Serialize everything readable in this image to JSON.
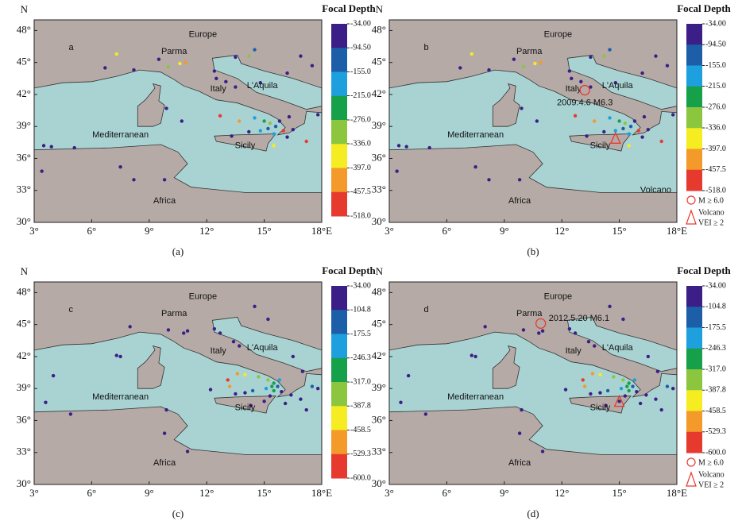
{
  "panels": [
    {
      "letter": "a",
      "caption": "(a)",
      "y_axis_label": "N",
      "colorbar_title": "Focal Depth",
      "xlim": [
        3,
        18
      ],
      "ylim": [
        30,
        49
      ],
      "xticks": [
        {
          "value": 3,
          "label": "3°"
        },
        {
          "value": 6,
          "label": "6°"
        },
        {
          "value": 9,
          "label": "9°"
        },
        {
          "value": 12,
          "label": "12°"
        },
        {
          "value": 15,
          "label": "15°"
        },
        {
          "value": 18,
          "label": "18°E"
        }
      ],
      "yticks": [
        {
          "value": 30,
          "label": "30°"
        },
        {
          "value": 33,
          "label": "33°"
        },
        {
          "value": 36,
          "label": "36°"
        },
        {
          "value": 39,
          "label": "39°"
        },
        {
          "value": 42,
          "label": "42°"
        },
        {
          "value": 45,
          "label": "45°"
        },
        {
          "value": 48,
          "label": "48°"
        }
      ],
      "colorbar_ticks": [
        {
          "value": -34,
          "label": "-34.00"
        },
        {
          "value": -94.5,
          "label": "-94.50"
        },
        {
          "value": -155,
          "label": "-155.0"
        },
        {
          "value": -215,
          "label": "-215.0"
        },
        {
          "value": -276,
          "label": "-276.0"
        },
        {
          "value": -336,
          "label": "-336.0"
        },
        {
          "value": -397,
          "label": "-397.0"
        },
        {
          "value": -457.5,
          "label": "-457.5"
        },
        {
          "value": -518,
          "label": "-518.0"
        }
      ],
      "colors": [
        "#3b1f86",
        "#1c5fa8",
        "#1ea0df",
        "#16a04a",
        "#8cc63e",
        "#f5ec22",
        "#f39a2a",
        "#e63a2f"
      ],
      "places": [
        "Europe",
        "Parma",
        "Italy",
        "L'Aquila",
        "Mediterranean",
        "Sicily",
        "Africa"
      ],
      "points": {
        "lon": [
          3.5,
          3.9,
          5.1,
          3.4,
          7.5,
          8.2,
          9.8,
          7.3,
          6.7,
          8.2,
          9.5,
          10,
          10.6,
          10.9,
          12.4,
          13.5,
          14.5,
          14.2,
          12.5,
          13,
          13.5,
          14.8,
          16.2,
          16.9,
          17.5,
          12.7,
          13.7,
          14.5,
          15,
          15.3,
          15.6,
          15.2,
          15.8,
          16,
          16.5,
          15.5,
          14.8,
          16.2,
          17.2,
          15.5,
          16.3,
          14.2,
          10.7,
          9.9,
          13.3,
          17.8
        ],
        "lat": [
          37.2,
          37.1,
          37,
          34.8,
          35.2,
          34,
          34,
          45.8,
          44.5,
          44.3,
          45.3,
          44.6,
          44.9,
          45,
          44.2,
          45.5,
          46.2,
          45.6,
          43.5,
          43.2,
          42.7,
          43.1,
          44,
          45.6,
          44.7,
          40,
          39.5,
          39.8,
          39.5,
          39.3,
          39,
          38.8,
          39.5,
          38.6,
          38.7,
          38.3,
          38.6,
          38,
          37.6,
          37.2,
          39.9,
          38.5,
          39.5,
          40.7,
          38.1,
          40.1
        ],
        "depth": [
          -40,
          -40,
          -40,
          -40,
          -40,
          -40,
          -40,
          -380,
          -40,
          -40,
          -40,
          -330,
          -380,
          -430,
          -40,
          -40,
          -120,
          -280,
          -40,
          -40,
          -40,
          -40,
          -40,
          -40,
          -40,
          -500,
          -400,
          -200,
          -250,
          -300,
          -150,
          -100,
          -40,
          -460,
          -40,
          -200,
          -180,
          -40,
          -500,
          -360,
          -40,
          -40,
          -40,
          -40,
          -40,
          -40
        ]
      }
    },
    {
      "letter": "b",
      "caption": "(b)",
      "y_axis_label": "N",
      "colorbar_title": "Focal Depth",
      "xlim": [
        3,
        18
      ],
      "ylim": [
        30,
        49
      ],
      "xticks": [
        {
          "value": 3,
          "label": "3°"
        },
        {
          "value": 6,
          "label": "6°"
        },
        {
          "value": 9,
          "label": "9°"
        },
        {
          "value": 12,
          "label": "12°"
        },
        {
          "value": 15,
          "label": "15°"
        },
        {
          "value": 18,
          "label": "18°E"
        }
      ],
      "yticks": [
        {
          "value": 30,
          "label": "30°"
        },
        {
          "value": 33,
          "label": "33°"
        },
        {
          "value": 36,
          "label": "36°"
        },
        {
          "value": 39,
          "label": "39°"
        },
        {
          "value": 42,
          "label": "42°"
        },
        {
          "value": 45,
          "label": "45°"
        },
        {
          "value": 48,
          "label": "48°"
        }
      ],
      "colorbar_ticks": [
        {
          "value": -34,
          "label": "-34.00"
        },
        {
          "value": -94.5,
          "label": "-94.50"
        },
        {
          "value": -155,
          "label": "-155.0"
        },
        {
          "value": -215,
          "label": "-215.0"
        },
        {
          "value": -276,
          "label": "-276.0"
        },
        {
          "value": -336,
          "label": "-336.0"
        },
        {
          "value": -397,
          "label": "-397.0"
        },
        {
          "value": -457.5,
          "label": "-457.5"
        },
        {
          "value": -518,
          "label": "-518.0"
        }
      ],
      "colors": [
        "#3b1f86",
        "#1c5fa8",
        "#1ea0df",
        "#16a04a",
        "#8cc63e",
        "#f5ec22",
        "#f39a2a",
        "#e63a2f"
      ],
      "places": [
        "Europe",
        "Parma",
        "Italy",
        "L'Aquila",
        "Mediterranean",
        "Sicily",
        "Africa",
        "Volcano"
      ],
      "event": {
        "label": "2009.4.6 M6.3",
        "lon": 13.2,
        "lat": 42.4
      },
      "volcano": {
        "lon": 14.8,
        "lat": 37.8
      },
      "legend": {
        "event": "M ≥ 6.0",
        "volcano": [
          "Volcano",
          "VEI ≥ 2"
        ]
      },
      "points": {
        "lon": [
          3.5,
          3.9,
          5.1,
          3.4,
          7.5,
          8.2,
          9.8,
          7.3,
          6.7,
          8.2,
          9.5,
          10,
          10.6,
          10.9,
          12.4,
          13.5,
          14.5,
          14.2,
          12.5,
          13,
          13.5,
          14.8,
          16.2,
          16.9,
          17.5,
          12.7,
          13.7,
          14.5,
          15,
          15.3,
          15.6,
          15.2,
          15.8,
          16,
          16.5,
          15.5,
          14.8,
          16.2,
          17.2,
          15.5,
          16.3,
          14.2,
          10.7,
          9.9,
          13.3,
          17.8
        ],
        "lat": [
          37.2,
          37.1,
          37,
          34.8,
          35.2,
          34,
          34,
          45.8,
          44.5,
          44.3,
          45.3,
          44.6,
          44.9,
          45,
          44.2,
          45.5,
          46.2,
          45.6,
          43.5,
          43.2,
          42.7,
          43.1,
          44,
          45.6,
          44.7,
          40,
          39.5,
          39.8,
          39.5,
          39.3,
          39,
          38.8,
          39.5,
          38.6,
          38.7,
          38.3,
          38.6,
          38,
          37.6,
          37.2,
          39.9,
          38.5,
          39.5,
          40.7,
          38.1,
          40.1
        ],
        "depth": [
          -40,
          -40,
          -40,
          -40,
          -40,
          -40,
          -40,
          -380,
          -40,
          -40,
          -40,
          -330,
          -380,
          -430,
          -40,
          -40,
          -120,
          -280,
          -40,
          -40,
          -40,
          -40,
          -40,
          -40,
          -40,
          -500,
          -400,
          -200,
          -250,
          -300,
          -150,
          -100,
          -40,
          -460,
          -40,
          -200,
          -180,
          -40,
          -500,
          -360,
          -40,
          -40,
          -40,
          -40,
          -40,
          -40
        ]
      }
    },
    {
      "letter": "c",
      "caption": "(c)",
      "y_axis_label": "N",
      "colorbar_title": "Focal Depth",
      "xlim": [
        3,
        18
      ],
      "ylim": [
        30,
        49
      ],
      "xticks": [
        {
          "value": 3,
          "label": "3°"
        },
        {
          "value": 6,
          "label": "6°"
        },
        {
          "value": 9,
          "label": "9°"
        },
        {
          "value": 12,
          "label": "12°"
        },
        {
          "value": 15,
          "label": "15°"
        },
        {
          "value": 18,
          "label": "18°E"
        }
      ],
      "yticks": [
        {
          "value": 30,
          "label": "30°"
        },
        {
          "value": 33,
          "label": "33°"
        },
        {
          "value": 36,
          "label": "36°"
        },
        {
          "value": 39,
          "label": "39°"
        },
        {
          "value": 42,
          "label": "42°"
        },
        {
          "value": 45,
          "label": "45°"
        },
        {
          "value": 48,
          "label": "48°"
        }
      ],
      "colorbar_ticks": [
        {
          "value": -34,
          "label": "-34.00"
        },
        {
          "value": -104.8,
          "label": "-104.8"
        },
        {
          "value": -175.5,
          "label": "-175.5"
        },
        {
          "value": -246.3,
          "label": "-246.3"
        },
        {
          "value": -317,
          "label": "-317.0"
        },
        {
          "value": -387.8,
          "label": "-387.8"
        },
        {
          "value": -458.5,
          "label": "-458.5"
        },
        {
          "value": -529.3,
          "label": "-529.3"
        },
        {
          "value": -600,
          "label": "-600.0"
        }
      ],
      "colors": [
        "#3b1f86",
        "#1c5fa8",
        "#1ea0df",
        "#16a04a",
        "#8cc63e",
        "#f5ec22",
        "#f39a2a",
        "#e63a2f"
      ],
      "places": [
        "Europe",
        "Parma",
        "Italy",
        "L'Aquila",
        "Mediterranean",
        "Sicily",
        "Africa"
      ],
      "points": {
        "lon": [
          4,
          3.6,
          4.9,
          7.3,
          7.5,
          9.8,
          11,
          9.9,
          8,
          10,
          10.8,
          11,
          12.4,
          12.7,
          13.4,
          13.7,
          14.5,
          15.2,
          16.5,
          17,
          17.8,
          17.5,
          13.1,
          13.6,
          14,
          14.7,
          15.2,
          15.5,
          15.8,
          15.4,
          15.7,
          15.1,
          15.9,
          16.4,
          16.9,
          15.5,
          14.4,
          14,
          13.5,
          15.3,
          16.1,
          15,
          14.3,
          17.2,
          12.2,
          13.2
        ],
        "lat": [
          40.2,
          37.7,
          36.6,
          42.1,
          42,
          34.8,
          33.1,
          37,
          44.8,
          44.5,
          44.2,
          44.4,
          44.6,
          44.2,
          43.4,
          43,
          46.7,
          45.5,
          42,
          40.6,
          39,
          39.2,
          39.8,
          40.4,
          40.3,
          40.1,
          39.8,
          39.5,
          39.8,
          39.2,
          39.2,
          39,
          38.7,
          38.4,
          38,
          38.8,
          38.8,
          38.6,
          38.5,
          38.3,
          37.6,
          37.8,
          37.4,
          37,
          38.9,
          39.2
        ],
        "depth": [
          -40,
          -40,
          -40,
          -40,
          -40,
          -40,
          -40,
          -40,
          -40,
          -40,
          -40,
          -40,
          -40,
          -40,
          -40,
          -40,
          -40,
          -40,
          -40,
          -40,
          -100,
          -170,
          -580,
          -520,
          -450,
          -380,
          -320,
          -250,
          -200,
          -300,
          -120,
          -180,
          -60,
          -40,
          -40,
          -260,
          -150,
          -40,
          -40,
          -40,
          -40,
          -40,
          -40,
          -40,
          -40,
          -520
        ]
      }
    },
    {
      "letter": "d",
      "caption": "(d)",
      "y_axis_label": "N",
      "colorbar_title": "Focal Depth",
      "xlim": [
        3,
        18
      ],
      "ylim": [
        30,
        49
      ],
      "xticks": [
        {
          "value": 3,
          "label": "3°"
        },
        {
          "value": 6,
          "label": "6°"
        },
        {
          "value": 9,
          "label": "9°"
        },
        {
          "value": 12,
          "label": "12°"
        },
        {
          "value": 15,
          "label": "15°"
        },
        {
          "value": 18,
          "label": "18°E"
        }
      ],
      "yticks": [
        {
          "value": 30,
          "label": "30°"
        },
        {
          "value": 33,
          "label": "33°"
        },
        {
          "value": 36,
          "label": "36°"
        },
        {
          "value": 39,
          "label": "39°"
        },
        {
          "value": 42,
          "label": "42°"
        },
        {
          "value": 45,
          "label": "45°"
        },
        {
          "value": 48,
          "label": "48°"
        }
      ],
      "colorbar_ticks": [
        {
          "value": -34,
          "label": "-34.00"
        },
        {
          "value": -104.8,
          "label": "-104.8"
        },
        {
          "value": -175.5,
          "label": "-175.5"
        },
        {
          "value": -246.3,
          "label": "-246.3"
        },
        {
          "value": -317,
          "label": "-317.0"
        },
        {
          "value": -387.8,
          "label": "-387.8"
        },
        {
          "value": -458.5,
          "label": "-458.5"
        },
        {
          "value": -529.3,
          "label": "-529.3"
        },
        {
          "value": -600,
          "label": "-600.0"
        }
      ],
      "colors": [
        "#3b1f86",
        "#1c5fa8",
        "#1ea0df",
        "#16a04a",
        "#8cc63e",
        "#f5ec22",
        "#f39a2a",
        "#e63a2f"
      ],
      "places": [
        "Europe",
        "Parma",
        "Italy",
        "L'Aquila",
        "Mediterranean",
        "Sicily",
        "Africa"
      ],
      "event": {
        "label": "2012.5.20 M6.1",
        "lon": 10.9,
        "lat": 45.1
      },
      "volcano": {
        "lon": 15,
        "lat": 37.7
      },
      "legend": {
        "event": "M ≥ 6.0",
        "volcano": [
          "Volcano",
          "VEI ≥ 2"
        ]
      },
      "points": {
        "lon": [
          4,
          3.6,
          4.9,
          7.3,
          7.5,
          9.8,
          11,
          9.9,
          8,
          10,
          10.8,
          11,
          12.4,
          12.7,
          13.4,
          13.7,
          14.5,
          15.2,
          16.5,
          17,
          17.8,
          17.5,
          13.1,
          13.6,
          14,
          14.7,
          15.2,
          15.5,
          15.8,
          15.4,
          15.7,
          15.1,
          15.9,
          16.4,
          16.9,
          15.5,
          14.4,
          14,
          13.5,
          15.3,
          16.1,
          15,
          14.3,
          17.2,
          12.2,
          13.2
        ],
        "lat": [
          40.2,
          37.7,
          36.6,
          42.1,
          42,
          34.8,
          33.1,
          37,
          44.8,
          44.5,
          44.2,
          44.4,
          44.6,
          44.2,
          43.4,
          43,
          46.7,
          45.5,
          42,
          40.6,
          39,
          39.2,
          39.8,
          40.4,
          40.3,
          40.1,
          39.8,
          39.5,
          39.8,
          39.2,
          39.2,
          39,
          38.7,
          38.4,
          38,
          38.8,
          38.8,
          38.6,
          38.5,
          38.3,
          37.6,
          37.8,
          37.4,
          37,
          38.9,
          39.2
        ],
        "depth": [
          -40,
          -40,
          -40,
          -40,
          -40,
          -40,
          -40,
          -40,
          -40,
          -40,
          -40,
          -40,
          -40,
          -40,
          -40,
          -40,
          -40,
          -40,
          -40,
          -40,
          -100,
          -170,
          -580,
          -520,
          -450,
          -380,
          -320,
          -250,
          -200,
          -300,
          -120,
          -180,
          -60,
          -40,
          -40,
          -260,
          -150,
          -40,
          -40,
          -40,
          -40,
          -40,
          -40,
          -40,
          -40,
          -520
        ]
      }
    }
  ]
}
